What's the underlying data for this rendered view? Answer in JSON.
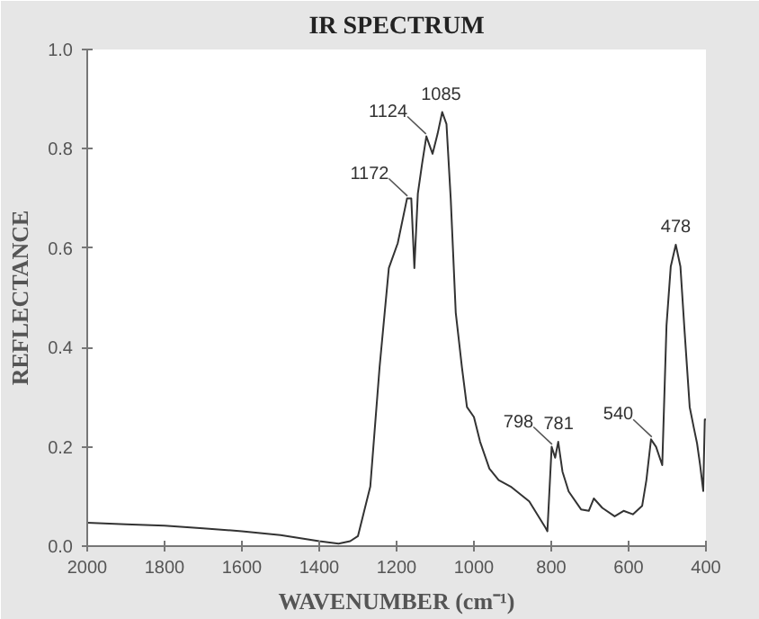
{
  "chart_data": {
    "type": "line",
    "title": "IR SPECTRUM",
    "xlabel": "WAVENUMBER (cm⁻¹)",
    "ylabel": "REFLECTANCE",
    "x": [
      2000,
      1900,
      1800,
      1700,
      1600,
      1500,
      1400,
      1350,
      1320,
      1300,
      1268,
      1244,
      1220,
      1197,
      1173,
      1162,
      1154,
      1145,
      1134,
      1123,
      1107,
      1094,
      1082,
      1071,
      1060,
      1047,
      1031,
      1018,
      1000,
      984,
      960,
      936,
      905,
      857,
      815,
      810,
      799,
      790,
      782,
      771,
      755,
      723,
      703,
      690,
      668,
      636,
      613,
      589,
      565,
      554,
      542,
      529,
      513,
      502,
      491,
      478,
      466,
      455,
      442,
      431,
      423,
      415,
      407,
      403,
      400
    ],
    "series": [
      {
        "color": "#333333",
        "values": [
          0.047,
          0.044,
          0.041,
          0.036,
          0.03,
          0.022,
          0.01,
          0.005,
          0.01,
          0.02,
          0.12,
          0.36,
          0.56,
          0.61,
          0.7,
          0.7,
          0.56,
          0.71,
          0.77,
          0.825,
          0.79,
          0.83,
          0.874,
          0.85,
          0.7,
          0.47,
          0.36,
          0.28,
          0.26,
          0.21,
          0.156,
          0.133,
          0.12,
          0.09,
          0.037,
          0.03,
          0.2,
          0.178,
          0.21,
          0.15,
          0.11,
          0.074,
          0.071,
          0.096,
          0.077,
          0.06,
          0.071,
          0.064,
          0.081,
          0.133,
          0.215,
          0.2,
          0.163,
          0.444,
          0.563,
          0.607,
          0.563,
          0.43,
          0.28,
          0.237,
          0.207,
          0.163,
          0.111,
          0.255,
          0.255
        ]
      }
    ],
    "xlim": [
      2000,
      400
    ],
    "xticks": [
      2000,
      1800,
      1600,
      1400,
      1200,
      1000,
      800,
      600,
      400
    ],
    "ylim": [
      0,
      1
    ],
    "yticks": [
      {
        "value": 0,
        "label": "0.0"
      },
      {
        "value": 0.2,
        "label": "0.2"
      },
      {
        "value": 0.4,
        "label": "0.4"
      },
      {
        "value": 0.6,
        "label": "0.6"
      },
      {
        "value": 0.8,
        "label": "0.8"
      },
      {
        "value": 1,
        "label": "1.0"
      }
    ],
    "grid": false,
    "line_style": "solid",
    "annotations": [
      {
        "text": "1172",
        "x": 1172,
        "y": 0.7
      },
      {
        "text": "1124",
        "x": 1124,
        "y": 0.825
      },
      {
        "text": "1085",
        "x": 1085,
        "y": 0.874
      },
      {
        "text": "798",
        "x": 798,
        "y": 0.2
      },
      {
        "text": "781",
        "x": 781,
        "y": 0.21
      },
      {
        "text": "540",
        "x": 540,
        "y": 0.215
      },
      {
        "text": "478",
        "x": 478,
        "y": 0.607
      }
    ]
  }
}
